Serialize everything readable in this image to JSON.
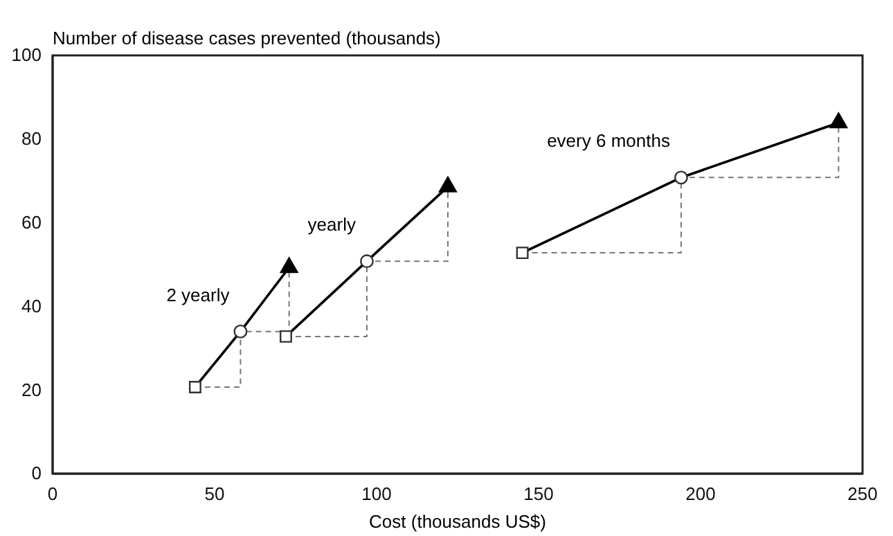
{
  "chart_data": {
    "type": "line",
    "ylabel": "Number of disease cases prevented (thousands)",
    "xlabel": "Cost (thousands US$)",
    "xlim": [
      0,
      250
    ],
    "xticks": [
      0,
      50,
      100,
      150,
      200,
      250
    ],
    "ylim": [
      0,
      100
    ],
    "yticks": [
      0,
      20,
      40,
      60,
      80,
      100
    ],
    "grid": false,
    "series": [
      {
        "type": "step",
        "color": "#777777",
        "line_style": "dashed",
        "marker": "none",
        "x": [
          44,
          58,
          73
        ],
        "values": [
          20.7,
          34,
          49.3
        ]
      },
      {
        "type": "step",
        "color": "#777777",
        "line_style": "dashed",
        "marker": "none",
        "x": [
          72,
          97,
          122
        ],
        "values": [
          32.8,
          50.8,
          68.6
        ]
      },
      {
        "type": "step",
        "color": "#777777",
        "line_style": "dashed",
        "marker": "none",
        "x": [
          145,
          194,
          242.6
        ],
        "values": [
          52.8,
          70.8,
          83.9
        ]
      },
      {
        "name": "2 yearly",
        "color": "#000000",
        "line_style": "solid",
        "marker": "none",
        "x": [
          44,
          58,
          73
        ],
        "values": [
          20.7,
          34,
          49.3
        ]
      },
      {
        "name": "yearly",
        "color": "#000000",
        "line_style": "solid",
        "marker": "none",
        "x": [
          72,
          97,
          122
        ],
        "values": [
          32.8,
          50.8,
          68.6
        ]
      },
      {
        "name": "every 6 months",
        "color": "#000000",
        "line_style": "solid",
        "marker": "none",
        "x": [
          145,
          194,
          242.6
        ],
        "values": [
          52.8,
          70.8,
          83.9
        ]
      },
      {
        "type": "scatter",
        "color": "#333333",
        "marker": "square",
        "x": [
          44,
          72,
          145
        ],
        "values": [
          20.7,
          32.8,
          52.8
        ]
      },
      {
        "type": "scatter",
        "color": "#333333",
        "marker": "circle",
        "x": [
          58,
          97,
          194
        ],
        "values": [
          34,
          50.8,
          70.8
        ]
      },
      {
        "type": "scatter",
        "color": "#000000",
        "marker": "triangle",
        "x": [
          73,
          122,
          242.6
        ],
        "values": [
          49.3,
          68.6,
          83.9
        ]
      }
    ]
  }
}
